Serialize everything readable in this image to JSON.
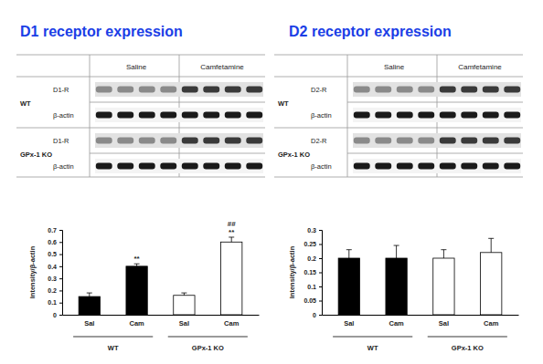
{
  "chart_data": [
    {
      "type": "bar",
      "title": "D1 receptor expression",
      "blot": {
        "columns": [
          "Saline",
          "Camfetamine"
        ],
        "rows": [
          {
            "group": "WT",
            "labels": [
              "D1-R",
              "β-actin"
            ]
          },
          {
            "group": "GPx-1 KO",
            "labels": [
              "D1-R",
              "β-actin"
            ]
          }
        ]
      },
      "y_label": "Intensity/β-actin",
      "categories": [
        "Sal",
        "Cam",
        "Sal",
        "Cam"
      ],
      "groups": [
        "WT",
        "GPx-1 KO"
      ],
      "values": [
        0.15,
        0.4,
        0.16,
        0.6
      ],
      "errors": [
        0.03,
        0.02,
        0.02,
        0.04
      ],
      "annotations": [
        null,
        [
          "**"
        ],
        null,
        [
          "##",
          "**"
        ]
      ],
      "colors": [
        "#000000",
        "#000000",
        "#ffffff",
        "#ffffff"
      ],
      "ylim": [
        0,
        0.7
      ],
      "yticks": [
        0,
        0.1,
        0.2,
        0.3,
        0.4,
        0.5,
        0.6,
        0.7
      ]
    },
    {
      "type": "bar",
      "title": "D2 receptor expression",
      "blot": {
        "columns": [
          "Saline",
          "Camfetamine"
        ],
        "rows": [
          {
            "group": "WT",
            "labels": [
              "D2-R",
              "β-actin"
            ]
          },
          {
            "group": "GPx-1 KO",
            "labels": [
              "D2-R",
              "β-actin"
            ]
          }
        ]
      },
      "y_label": "Intensity/β-actin",
      "categories": [
        "Sal",
        "Cam",
        "Sal",
        "Cam"
      ],
      "groups": [
        "WT",
        "GPx-1 KO"
      ],
      "values": [
        0.2,
        0.2,
        0.2,
        0.22
      ],
      "errors": [
        0.03,
        0.045,
        0.03,
        0.05
      ],
      "colors": [
        "#000000",
        "#000000",
        "#ffffff",
        "#ffffff"
      ],
      "ylim": [
        0,
        0.3
      ],
      "yticks": [
        0,
        0.05,
        0.1,
        0.15,
        0.2,
        0.25,
        0.3
      ]
    }
  ]
}
